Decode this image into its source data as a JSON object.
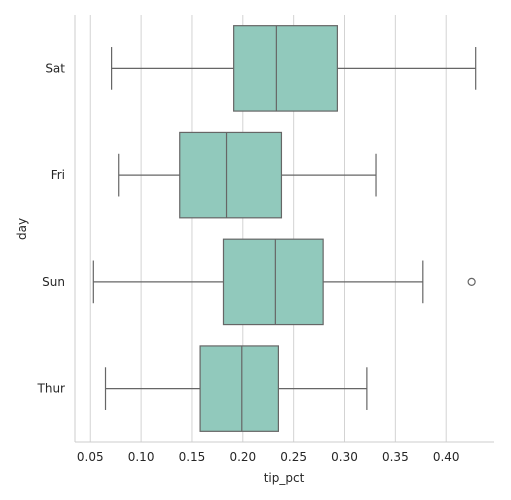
{
  "chart_data": {
    "type": "boxplot",
    "orientation": "horizontal",
    "xlabel": "tip_pct",
    "ylabel": "day",
    "xlim": [
      0.035,
      0.447
    ],
    "xticks": [
      0.05,
      0.1,
      0.15,
      0.2,
      0.25,
      0.3,
      0.35,
      0.4
    ],
    "xtick_labels": [
      "0.05",
      "0.10",
      "0.15",
      "0.20",
      "0.25",
      "0.30",
      "0.35",
      "0.40"
    ],
    "grid": "vertical",
    "box_color": "#91c9bc",
    "line_color": "#666666",
    "categories": [
      "Sat",
      "Fri",
      "Sun",
      "Thur"
    ],
    "boxes": [
      {
        "category": "Sat",
        "whisker_low": 0.071,
        "q1": 0.191,
        "median": 0.233,
        "q3": 0.293,
        "whisker_high": 0.429,
        "outliers": []
      },
      {
        "category": "Fri",
        "whisker_low": 0.078,
        "q1": 0.138,
        "median": 0.184,
        "q3": 0.238,
        "whisker_high": 0.331,
        "outliers": []
      },
      {
        "category": "Sun",
        "whisker_low": 0.053,
        "q1": 0.181,
        "median": 0.232,
        "q3": 0.279,
        "whisker_high": 0.377,
        "outliers": [
          0.425
        ]
      },
      {
        "category": "Thur",
        "whisker_low": 0.065,
        "q1": 0.158,
        "median": 0.199,
        "q3": 0.235,
        "whisker_high": 0.322,
        "outliers": []
      }
    ]
  }
}
